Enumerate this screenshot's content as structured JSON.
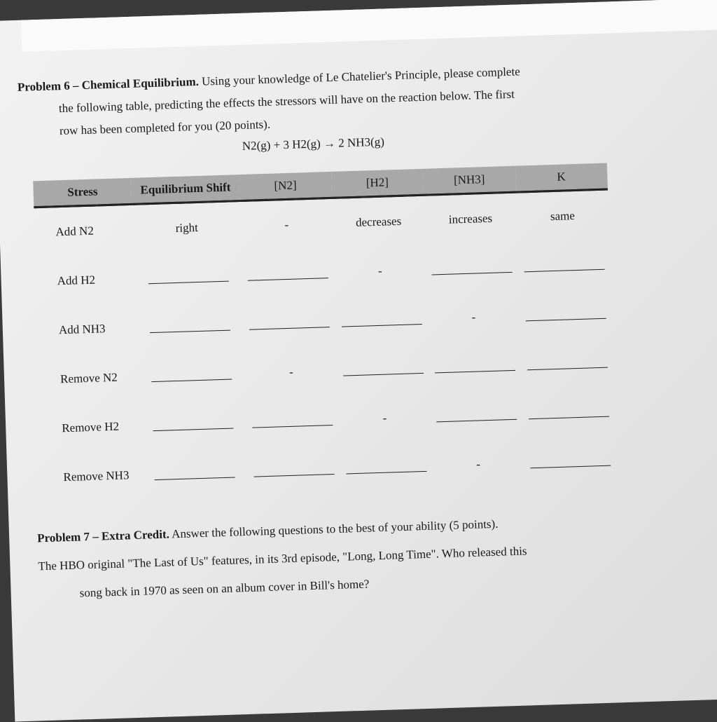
{
  "problem6": {
    "heading": "Problem 6 – Chemical Equilibrium.",
    "line1": "Using your knowledge of Le Chatelier's Principle, please complete",
    "line2": "the following table, predicting the effects the stressors will have on the reaction below. The first",
    "line3": "row has been completed for you (20 points).",
    "equation": "N2(g) + 3 H2(g) → 2 NH3(g)",
    "table": {
      "headers": [
        "Stress",
        "Equilibrium Shift",
        "[N2]",
        "[H2]",
        "[NH3]",
        "K"
      ],
      "rows": [
        {
          "stress": "Add N2",
          "cells": [
            "right",
            "-",
            "decreases",
            "increases",
            "same"
          ]
        },
        {
          "stress": "Add H2",
          "cells": [
            "",
            "",
            "-",
            "",
            ""
          ]
        },
        {
          "stress": "Add NH3",
          "cells": [
            "",
            "",
            "",
            "-",
            ""
          ]
        },
        {
          "stress": "Remove N2",
          "cells": [
            "",
            "-",
            "",
            "",
            ""
          ]
        },
        {
          "stress": "Remove H2",
          "cells": [
            "",
            "",
            "-",
            "",
            ""
          ]
        },
        {
          "stress": "Remove NH3",
          "cells": [
            "",
            "",
            "",
            "-",
            ""
          ]
        }
      ]
    }
  },
  "problem7": {
    "heading": "Problem 7 – Extra Credit.",
    "line1": "Answer the following questions to the best of your ability (5 points).",
    "line2": "The HBO original \"The Last of Us\" features, in its 3rd episode, \"Long, Long Time\". Who released this",
    "line3": "song back in 1970 as seen on an album cover in Bill's home?"
  }
}
